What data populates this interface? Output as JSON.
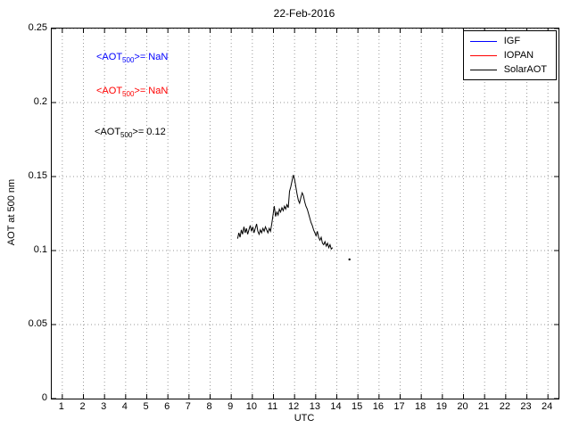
{
  "title": "22-Feb-2016",
  "axes": {
    "xlabel": "UTC",
    "ylabel": "AOT at 500 nm"
  },
  "annotations": [
    {
      "pre": "<AOT",
      "sub": "500",
      "post": ">=  NaN",
      "color": "#0000ff"
    },
    {
      "pre": "<AOT",
      "sub": "500",
      "post": ">=  NaN",
      "color": "#ff0000"
    },
    {
      "pre": "<AOT",
      "sub": "500",
      "post": ">= 0.12",
      "color": "#000000"
    }
  ],
  "legend": {
    "items": [
      {
        "label": "IGF",
        "color": "#0000ff"
      },
      {
        "label": "IOPAN",
        "color": "#ff0000"
      },
      {
        "label": "SolarAOT",
        "color": "#000000"
      }
    ]
  },
  "chart_data": {
    "type": "line",
    "title": "22-Feb-2016",
    "xlabel": "UTC",
    "ylabel": "AOT at 500 nm",
    "xlim": [
      0.5,
      24.5
    ],
    "ylim": [
      0,
      0.25
    ],
    "xticks": [
      1,
      2,
      3,
      4,
      5,
      6,
      7,
      8,
      9,
      10,
      11,
      12,
      13,
      14,
      15,
      16,
      17,
      18,
      19,
      20,
      21,
      22,
      23,
      24
    ],
    "yticks": [
      0,
      0.05,
      0.1,
      0.15,
      0.2,
      0.25
    ],
    "grid": true,
    "legend_position": "top-right",
    "series": [
      {
        "name": "IGF",
        "color": "#0000ff",
        "points": []
      },
      {
        "name": "IOPAN",
        "color": "#ff0000",
        "points": []
      },
      {
        "name": "SolarAOT",
        "color": "#000000",
        "points": [
          [
            9.3,
            0.108
          ],
          [
            9.36,
            0.112
          ],
          [
            9.42,
            0.109
          ],
          [
            9.48,
            0.114
          ],
          [
            9.54,
            0.111
          ],
          [
            9.6,
            0.116
          ],
          [
            9.66,
            0.112
          ],
          [
            9.72,
            0.115
          ],
          [
            9.78,
            0.111
          ],
          [
            9.84,
            0.114
          ],
          [
            9.9,
            0.117
          ],
          [
            9.96,
            0.113
          ],
          [
            10.02,
            0.116
          ],
          [
            10.08,
            0.112
          ],
          [
            10.14,
            0.115
          ],
          [
            10.2,
            0.118
          ],
          [
            10.26,
            0.113
          ],
          [
            10.32,
            0.111
          ],
          [
            10.38,
            0.114
          ],
          [
            10.44,
            0.112
          ],
          [
            10.5,
            0.115
          ],
          [
            10.56,
            0.113
          ],
          [
            10.62,
            0.116
          ],
          [
            10.68,
            0.114
          ],
          [
            10.74,
            0.112
          ],
          [
            10.8,
            0.115
          ],
          [
            10.86,
            0.113
          ],
          [
            10.92,
            0.118
          ],
          [
            10.98,
            0.124
          ],
          [
            11.04,
            0.13
          ],
          [
            11.1,
            0.123
          ],
          [
            11.16,
            0.126
          ],
          [
            11.22,
            0.124
          ],
          [
            11.28,
            0.128
          ],
          [
            11.34,
            0.126
          ],
          [
            11.4,
            0.129
          ],
          [
            11.46,
            0.127
          ],
          [
            11.52,
            0.13
          ],
          [
            11.58,
            0.128
          ],
          [
            11.64,
            0.131
          ],
          [
            11.7,
            0.129
          ],
          [
            11.76,
            0.14
          ],
          [
            11.82,
            0.143
          ],
          [
            11.88,
            0.147
          ],
          [
            11.94,
            0.151
          ],
          [
            12.0,
            0.148
          ],
          [
            12.06,
            0.143
          ],
          [
            12.12,
            0.138
          ],
          [
            12.18,
            0.134
          ],
          [
            12.24,
            0.132
          ],
          [
            12.3,
            0.136
          ],
          [
            12.36,
            0.139
          ],
          [
            12.42,
            0.137
          ],
          [
            12.48,
            0.133
          ],
          [
            12.54,
            0.13
          ],
          [
            12.6,
            0.128
          ],
          [
            12.66,
            0.125
          ],
          [
            12.72,
            0.122
          ],
          [
            12.78,
            0.119
          ],
          [
            12.84,
            0.117
          ],
          [
            12.9,
            0.114
          ],
          [
            12.96,
            0.112
          ],
          [
            13.02,
            0.11
          ],
          [
            13.08,
            0.113
          ],
          [
            13.14,
            0.109
          ],
          [
            13.2,
            0.107
          ],
          [
            13.26,
            0.109
          ],
          [
            13.32,
            0.105
          ],
          [
            13.38,
            0.104
          ],
          [
            13.44,
            0.106
          ],
          [
            13.5,
            0.103
          ],
          [
            13.56,
            0.105
          ],
          [
            13.62,
            0.102
          ],
          [
            13.68,
            0.104
          ],
          [
            13.74,
            0.101
          ],
          [
            13.8,
            0.102
          ]
        ],
        "isolated_points": [
          [
            14.6,
            0.094
          ]
        ]
      }
    ]
  }
}
